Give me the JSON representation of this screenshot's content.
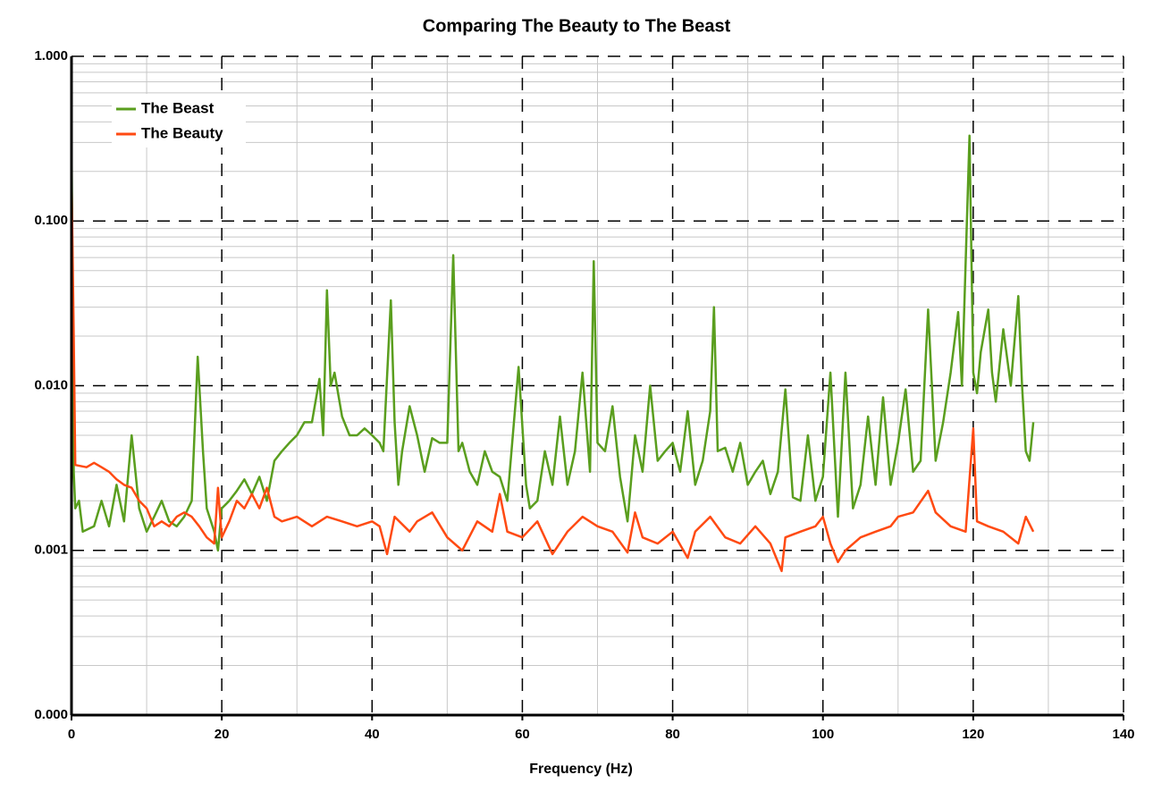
{
  "chart_data": {
    "type": "line",
    "title": "Comparing The Beauty to The Beast",
    "x_label": "Frequency (Hz)",
    "log_y": true,
    "grid": true,
    "minor_grid": true,
    "legend": "upper left",
    "xlim": [
      0,
      140
    ],
    "xticks": [
      0,
      20,
      40,
      60,
      80,
      100,
      120,
      140
    ],
    "ylim": [
      0.0001,
      1
    ],
    "yticks": [
      {
        "value": 0.0001,
        "label": "0.000"
      },
      {
        "value": 0.001,
        "label": "0.001"
      },
      {
        "value": 0.01,
        "label": "0.010"
      },
      {
        "value": 0.1,
        "label": "0.100"
      },
      {
        "value": 1,
        "label": "1.000"
      }
    ],
    "series": [
      {
        "name": "The Beast",
        "color": "#5a9e1e",
        "x": [
          0,
          0.3,
          0.5,
          1,
          1.5,
          3,
          4,
          5,
          6,
          7,
          8,
          9,
          10,
          11,
          12,
          13,
          14,
          15,
          16,
          16.8,
          17.5,
          18,
          19,
          19.5,
          20,
          21,
          22,
          23,
          24,
          25,
          26,
          27,
          28,
          29,
          30,
          31,
          32,
          33,
          33.5,
          34,
          34.5,
          35,
          36,
          37,
          38,
          39,
          40,
          41,
          41.5,
          42.5,
          43,
          43.5,
          44,
          45,
          46,
          47,
          48,
          49,
          50,
          50.8,
          51.5,
          52,
          53,
          54,
          55,
          56,
          57,
          58,
          59.5,
          60.5,
          61,
          62,
          63,
          64,
          65,
          66,
          67,
          68,
          69,
          69.5,
          70,
          71,
          72,
          73,
          74,
          75,
          76,
          77,
          78,
          79,
          80,
          81,
          82,
          83,
          84,
          85,
          85.5,
          86,
          87,
          88,
          89,
          90,
          91,
          92,
          93,
          94,
          95,
          96,
          97,
          98,
          99,
          100,
          101,
          102,
          103,
          104,
          105,
          106,
          107,
          108,
          109,
          110,
          111,
          112,
          113,
          114,
          115,
          116,
          117,
          118,
          118.5,
          119.5,
          120,
          120.5,
          121,
          122,
          122.5,
          123,
          124,
          125,
          126,
          126.5,
          127,
          127.5,
          128
        ],
        "values": [
          0.35,
          0.003,
          0.0018,
          0.002,
          0.0013,
          0.0014,
          0.002,
          0.0014,
          0.0025,
          0.0015,
          0.005,
          0.0018,
          0.0013,
          0.0016,
          0.002,
          0.0015,
          0.0014,
          0.0016,
          0.002,
          0.015,
          0.004,
          0.0018,
          0.0013,
          0.001,
          0.0018,
          0.002,
          0.0023,
          0.0027,
          0.0022,
          0.0028,
          0.002,
          0.0035,
          0.004,
          0.0045,
          0.005,
          0.006,
          0.006,
          0.011,
          0.005,
          0.038,
          0.01,
          0.012,
          0.0065,
          0.005,
          0.005,
          0.0055,
          0.005,
          0.0045,
          0.004,
          0.033,
          0.006,
          0.0025,
          0.004,
          0.0075,
          0.005,
          0.003,
          0.0048,
          0.0045,
          0.0045,
          0.062,
          0.004,
          0.0045,
          0.003,
          0.0025,
          0.004,
          0.003,
          0.0028,
          0.002,
          0.013,
          0.0025,
          0.0018,
          0.002,
          0.004,
          0.0025,
          0.0065,
          0.0025,
          0.004,
          0.012,
          0.003,
          0.057,
          0.0045,
          0.004,
          0.0075,
          0.0028,
          0.0015,
          0.005,
          0.003,
          0.01,
          0.0035,
          0.004,
          0.0045,
          0.003,
          0.007,
          0.0025,
          0.0035,
          0.007,
          0.03,
          0.004,
          0.0042,
          0.003,
          0.0045,
          0.0025,
          0.003,
          0.0035,
          0.0022,
          0.003,
          0.0095,
          0.0021,
          0.002,
          0.005,
          0.002,
          0.0028,
          0.012,
          0.0016,
          0.012,
          0.0018,
          0.0025,
          0.0065,
          0.0025,
          0.0085,
          0.0025,
          0.0045,
          0.0095,
          0.003,
          0.0035,
          0.029,
          0.0035,
          0.006,
          0.012,
          0.028,
          0.01,
          0.33,
          0.012,
          0.009,
          0.016,
          0.029,
          0.012,
          0.008,
          0.022,
          0.01,
          0.035,
          0.01,
          0.004,
          0.0035,
          0.006
        ]
      },
      {
        "name": "The Beauty",
        "color": "#ff4a12",
        "x": [
          0,
          0.3,
          0.5,
          2,
          3,
          4,
          5,
          6,
          7,
          8,
          9,
          10,
          11,
          12,
          13,
          14,
          15,
          16,
          17,
          18,
          19,
          19.5,
          20,
          21,
          22,
          23,
          24,
          25,
          26,
          27,
          28,
          30,
          32,
          34,
          36,
          38,
          40,
          41,
          42,
          43,
          45,
          46,
          48,
          50,
          52,
          54,
          56,
          57,
          58,
          60,
          62,
          64,
          66,
          68,
          70,
          72,
          74,
          75,
          76,
          78,
          80,
          82,
          83,
          85,
          87,
          89,
          91,
          93,
          94.5,
          95,
          97,
          99,
          100,
          101,
          102,
          103,
          105,
          107,
          109,
          110,
          112,
          114,
          115,
          117,
          119,
          120,
          120.5,
          122,
          124,
          126,
          127,
          128
        ],
        "values": [
          0.19,
          0.02,
          0.0033,
          0.0032,
          0.0034,
          0.0032,
          0.003,
          0.0027,
          0.0025,
          0.0024,
          0.002,
          0.0018,
          0.0014,
          0.0015,
          0.0014,
          0.0016,
          0.0017,
          0.0016,
          0.0014,
          0.0012,
          0.0011,
          0.0024,
          0.0012,
          0.0015,
          0.002,
          0.0018,
          0.0022,
          0.0018,
          0.0024,
          0.0016,
          0.0015,
          0.0016,
          0.0014,
          0.0016,
          0.0015,
          0.0014,
          0.0015,
          0.0014,
          0.00095,
          0.0016,
          0.0013,
          0.0015,
          0.0017,
          0.0012,
          0.001,
          0.0015,
          0.0013,
          0.0022,
          0.0013,
          0.0012,
          0.0015,
          0.00095,
          0.0013,
          0.0016,
          0.0014,
          0.0013,
          0.00097,
          0.0017,
          0.0012,
          0.0011,
          0.0013,
          0.0009,
          0.0013,
          0.0016,
          0.0012,
          0.0011,
          0.0014,
          0.0011,
          0.00075,
          0.0012,
          0.0013,
          0.0014,
          0.0016,
          0.0011,
          0.00085,
          0.001,
          0.0012,
          0.0013,
          0.0014,
          0.0016,
          0.0017,
          0.0023,
          0.0017,
          0.0014,
          0.0013,
          0.0055,
          0.0015,
          0.0014,
          0.0013,
          0.0011,
          0.0016,
          0.0013
        ]
      }
    ]
  }
}
